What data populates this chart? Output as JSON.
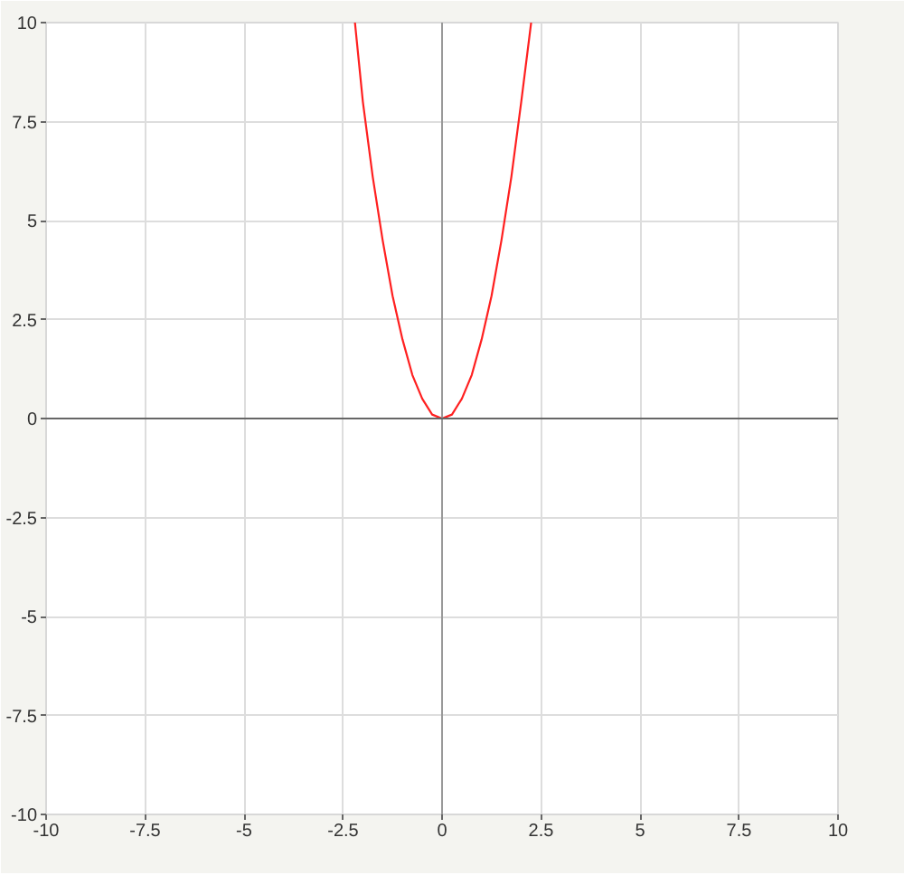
{
  "chart_data": {
    "type": "line",
    "x": [
      -2.2,
      -2,
      -1.75,
      -1.5,
      -1.25,
      -1,
      -0.75,
      -0.5,
      -0.25,
      0,
      0.25,
      0.5,
      0.75,
      1,
      1.25,
      1.5,
      1.75,
      2,
      2.25
    ],
    "series": [
      {
        "color": "#ff2020",
        "values": [
          10,
          8,
          6.1,
          4.5,
          3.1,
          2,
          1.1,
          0.5,
          0.1,
          0,
          0.1,
          0.5,
          1.1,
          2,
          3.1,
          4.5,
          6.1,
          8,
          10
        ]
      }
    ],
    "xlim": [
      -10,
      10
    ],
    "ylim": [
      -10,
      10
    ],
    "xticks": [
      -10,
      -7.5,
      -5,
      -2.5,
      0,
      2.5,
      5,
      7.5,
      10
    ],
    "yticks": [
      -10,
      -7.5,
      -5,
      -2.5,
      0,
      2.5,
      5,
      7.5,
      10
    ],
    "grid": true,
    "marker": "none",
    "line_style": "solid",
    "ref_lines": [
      {
        "axis": "x",
        "value": 0,
        "color": "#999999"
      },
      {
        "axis": "y",
        "value": 0,
        "color": "#666666"
      }
    ]
  }
}
